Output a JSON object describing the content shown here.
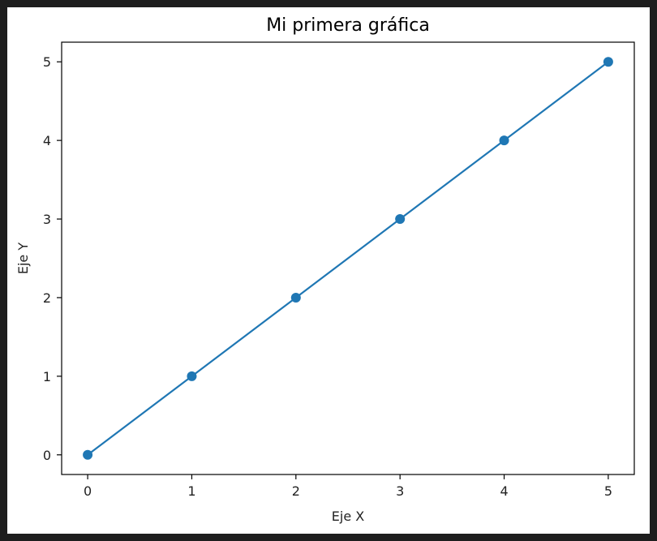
{
  "colors": {
    "background_frame": "#1e1e1e",
    "figure_bg": "#ffffff",
    "series": "#1f77b4"
  },
  "chart_data": {
    "type": "line",
    "title": "Mi primera gráfica",
    "xlabel": "Eje X",
    "ylabel": "Eje Y",
    "xlim": [
      -0.25,
      5.25
    ],
    "ylim": [
      -0.25,
      5.25
    ],
    "xticks": [
      "0",
      "1",
      "2",
      "3",
      "4",
      "5"
    ],
    "yticks": [
      "0",
      "1",
      "2",
      "3",
      "4",
      "5"
    ],
    "grid": false,
    "markers": true,
    "series": [
      {
        "x": [
          0,
          1,
          2,
          3,
          4,
          5
        ],
        "y": [
          0,
          1,
          2,
          3,
          4,
          5
        ]
      }
    ]
  }
}
